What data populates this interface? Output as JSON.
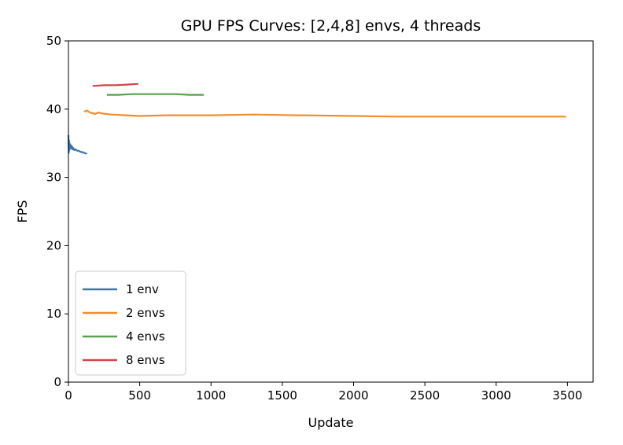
{
  "chart_data": {
    "type": "line",
    "title": "GPU FPS Curves: [2,4,8] envs, 4 threads",
    "xlabel": "Update",
    "ylabel": "FPS",
    "xlim": [
      0,
      3680
    ],
    "ylim": [
      0,
      50
    ],
    "xticks": [
      0,
      500,
      1000,
      1500,
      2000,
      2500,
      3000,
      3500
    ],
    "yticks": [
      0,
      10,
      20,
      30,
      40,
      50
    ],
    "grid": false,
    "legend_position": "lower-left",
    "series": [
      {
        "name": "1 env",
        "color": "#3a75b0",
        "x": [
          0,
          2,
          4,
          6,
          8,
          10,
          12,
          15,
          18,
          22,
          26,
          30,
          35,
          40,
          50,
          60,
          70,
          80,
          90,
          100,
          110,
          120,
          130
        ],
        "y": [
          36.2,
          33.6,
          35.4,
          34.0,
          35.0,
          34.2,
          34.8,
          34.3,
          34.7,
          34.2,
          34.5,
          34.1,
          34.3,
          34.0,
          34.1,
          33.9,
          33.9,
          33.8,
          33.7,
          33.7,
          33.6,
          33.5,
          33.5
        ]
      },
      {
        "name": "2 envs",
        "color": "#f28e2b",
        "x": [
          110,
          130,
          150,
          170,
          190,
          210,
          230,
          260,
          300,
          400,
          500,
          700,
          1000,
          1300,
          1600,
          2000,
          2300,
          2600,
          3000,
          3300,
          3490
        ],
        "y": [
          39.6,
          39.8,
          39.5,
          39.4,
          39.3,
          39.5,
          39.4,
          39.3,
          39.2,
          39.1,
          39.0,
          39.1,
          39.1,
          39.2,
          39.1,
          39.0,
          38.9,
          38.9,
          38.9,
          38.9,
          38.9
        ]
      },
      {
        "name": "4 envs",
        "color": "#59a14f",
        "x": [
          270,
          350,
          450,
          550,
          650,
          750,
          850,
          950
        ],
        "y": [
          42.1,
          42.1,
          42.2,
          42.2,
          42.2,
          42.2,
          42.1,
          42.1
        ]
      },
      {
        "name": "8 envs",
        "color": "#d0454a",
        "x": [
          170,
          250,
          330,
          410,
          490
        ],
        "y": [
          43.4,
          43.5,
          43.5,
          43.6,
          43.7
        ]
      }
    ]
  }
}
